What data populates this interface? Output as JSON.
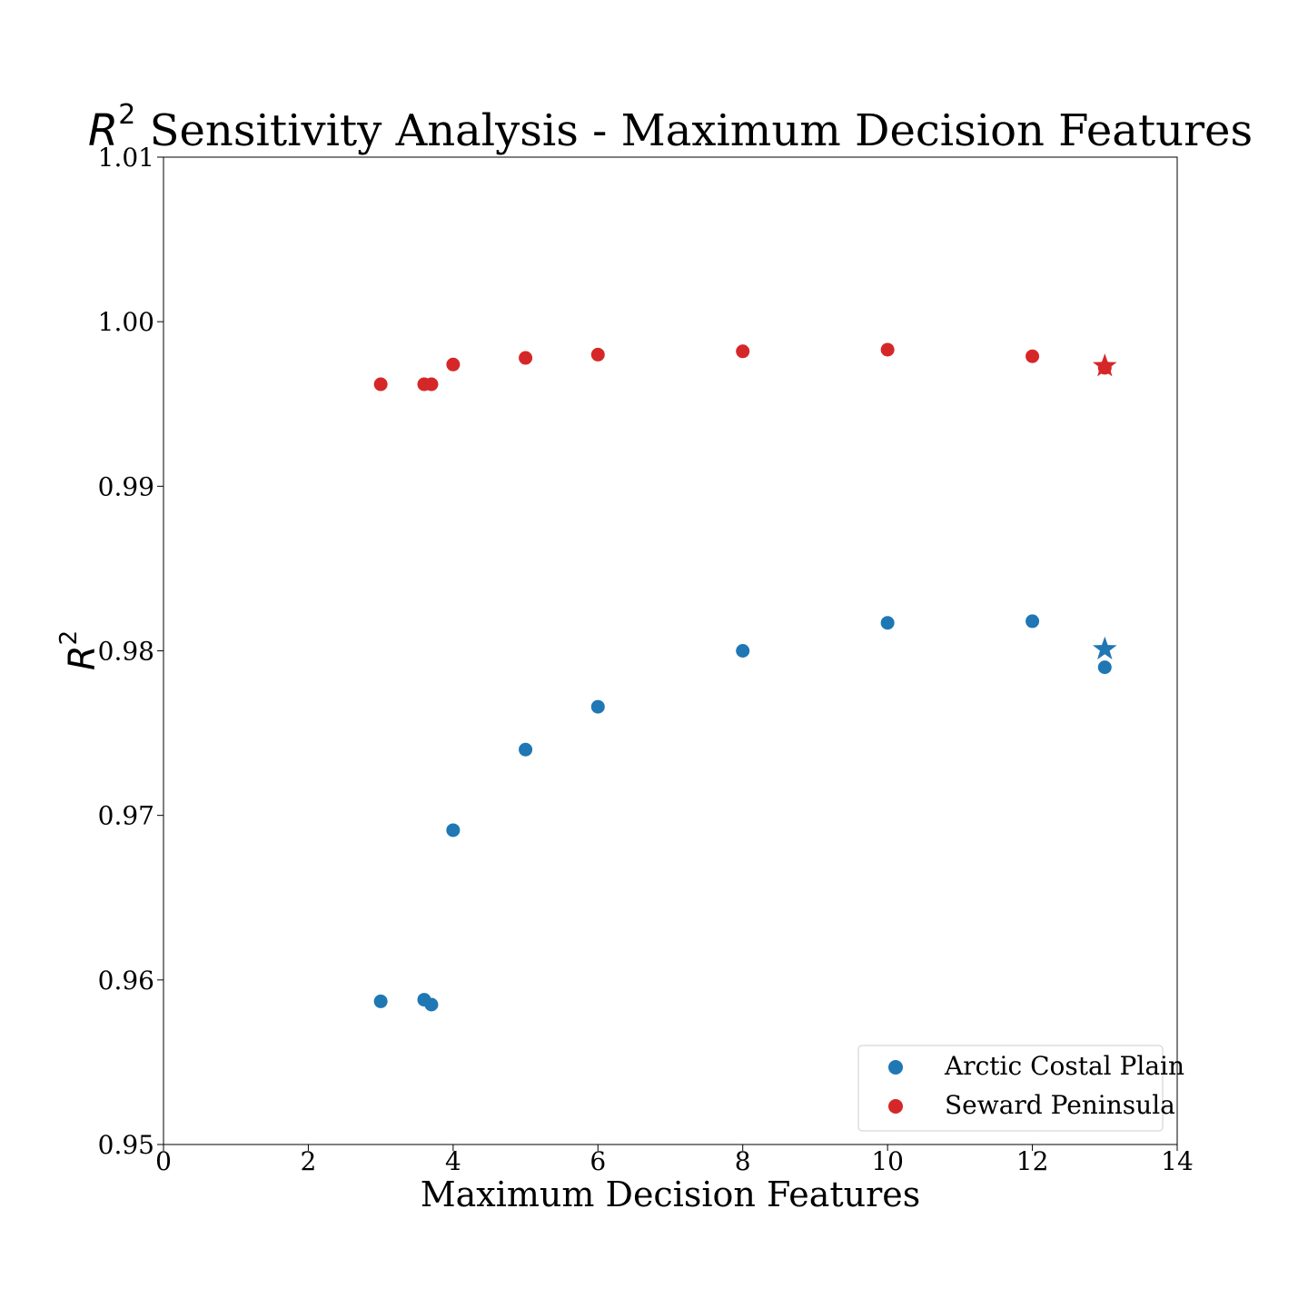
{
  "chart_data": {
    "type": "scatter",
    "title_symbol": "R",
    "title_superscript": "2",
    "title_text": " Sensitivity Analysis - Maximum Decision Features",
    "xlabel": "Maximum Decision Features",
    "ylabel_symbol": "R",
    "ylabel_superscript": "2",
    "xlim": [
      0,
      14
    ],
    "ylim": [
      0.95,
      1.01
    ],
    "x_ticks": [
      0,
      2,
      4,
      6,
      8,
      10,
      12,
      14
    ],
    "y_ticks": [
      0.95,
      0.96,
      0.97,
      0.98,
      0.99,
      1.0,
      1.01
    ],
    "y_tick_labels": [
      "0.95",
      "0.96",
      "0.97",
      "0.98",
      "0.99",
      "1.00",
      "1.01"
    ],
    "grid": false,
    "legend_position": "bottom-right",
    "series": [
      {
        "name": "Arctic Costal Plain",
        "color": "#1f77b4",
        "points": [
          {
            "x": 3,
            "y": 0.9587
          },
          {
            "x": 3.6,
            "y": 0.9588
          },
          {
            "x": 3.7,
            "y": 0.9585
          },
          {
            "x": 4,
            "y": 0.9691
          },
          {
            "x": 5,
            "y": 0.974
          },
          {
            "x": 6,
            "y": 0.9766
          },
          {
            "x": 8,
            "y": 0.98
          },
          {
            "x": 10,
            "y": 0.9817
          },
          {
            "x": 12,
            "y": 0.9818
          },
          {
            "x": 13,
            "y": 0.979
          }
        ],
        "star": {
          "x": 13,
          "y": 0.9801
        }
      },
      {
        "name": "Seward Peninsula",
        "color": "#d62728",
        "points": [
          {
            "x": 3,
            "y": 0.9962
          },
          {
            "x": 3.6,
            "y": 0.9962
          },
          {
            "x": 3.7,
            "y": 0.9962
          },
          {
            "x": 4,
            "y": 0.9974
          },
          {
            "x": 5,
            "y": 0.9978
          },
          {
            "x": 6,
            "y": 0.998
          },
          {
            "x": 8,
            "y": 0.9982
          },
          {
            "x": 10,
            "y": 0.9983
          },
          {
            "x": 12,
            "y": 0.9979
          },
          {
            "x": 13,
            "y": 0.9972
          }
        ],
        "star": {
          "x": 13,
          "y": 0.9973
        }
      }
    ]
  }
}
